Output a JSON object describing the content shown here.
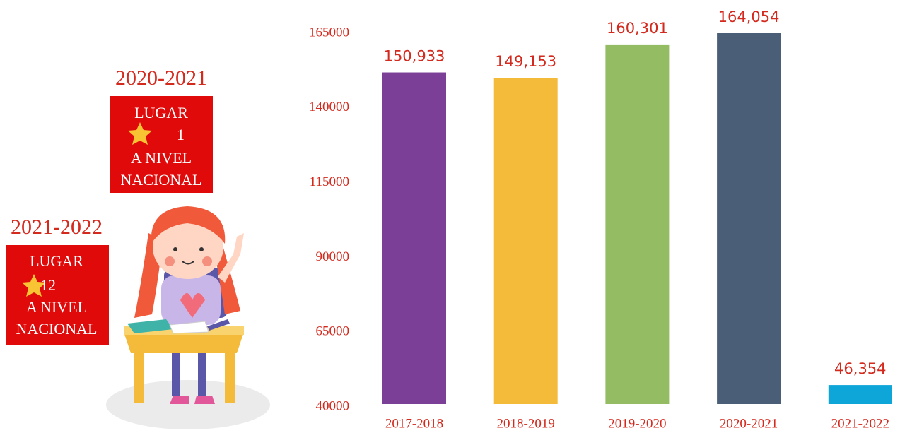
{
  "chart_data": {
    "type": "bar",
    "categories": [
      "2017-2018",
      "2018-2019",
      "2019-2020",
      "2020-2021",
      "2021-2022"
    ],
    "values": [
      150933,
      149153,
      160301,
      164054,
      46354
    ],
    "value_labels": [
      "150,933",
      "149,153",
      "160,301",
      "164,054",
      "46,354"
    ],
    "colors": [
      "#7b3f98",
      "#f4bb3a",
      "#93bc63",
      "#4a5e78",
      "#0ea5d8"
    ],
    "ylim": [
      40000,
      165000
    ],
    "yticks": [
      40000,
      65000,
      90000,
      115000,
      140000,
      165000
    ],
    "grid": false
  },
  "badges": [
    {
      "title": "2020-2021",
      "lines": [
        "LUGAR",
        "1",
        "A NIVEL",
        "NACIONAL"
      ]
    },
    {
      "title": "2021-2022",
      "lines": [
        "LUGAR",
        "12",
        "A NIVEL",
        "NACIONAL"
      ]
    }
  ]
}
